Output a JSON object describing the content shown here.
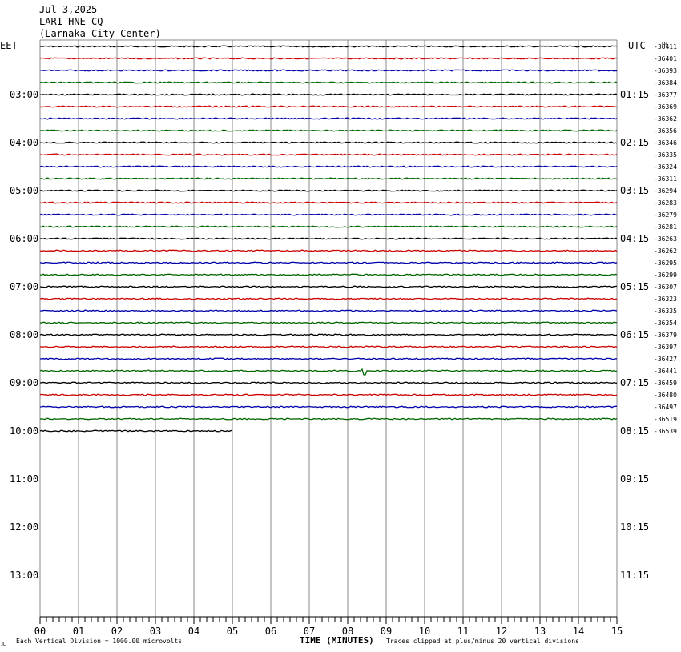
{
  "header": {
    "date": "Jul 3,2025",
    "station": "LAR1 HNE CQ --",
    "location": "(Larnaka City Center)"
  },
  "labels": {
    "left_zone": "EET",
    "right_zone": "UTC",
    "dc": "DC",
    "xlabel": "TIME (MINUTES)",
    "scale_note": "Each Vertical Division = 1000.00 microvolts",
    "clip_note": "Traces clipped at plus/minus 20 vertical divisions",
    "corner_mark": "JL"
  },
  "chart_data": {
    "type": "line",
    "title": "LAR1 HNE CQ --",
    "xlabel": "TIME (MINUTES)",
    "xlim": [
      0,
      15
    ],
    "x_ticks": [
      "00",
      "01",
      "02",
      "03",
      "04",
      "05",
      "06",
      "07",
      "08",
      "09",
      "10",
      "11",
      "12",
      "13",
      "14",
      "15"
    ],
    "left_time_labels": [
      "03:00",
      "04:00",
      "05:00",
      "06:00",
      "07:00",
      "08:00",
      "09:00",
      "10:00",
      "11:00",
      "12:00",
      "13:00"
    ],
    "right_time_labels": [
      "01:15",
      "02:15",
      "03:15",
      "04:15",
      "05:15",
      "06:15",
      "07:15",
      "08:15",
      "09:15",
      "10:15",
      "11:15"
    ],
    "rows_total": 33,
    "trace_colors": [
      "#000000",
      "#cc0000",
      "#0000aa",
      "#006600"
    ],
    "dc_offsets": [
      -36411,
      -36401,
      -36393,
      -36384,
      -36377,
      -36369,
      -36362,
      -36356,
      -36346,
      -36335,
      -36324,
      -36311,
      -36294,
      -36283,
      -36279,
      -36281,
      -36263,
      -36262,
      -36295,
      -36299,
      -36307,
      -36323,
      -36335,
      -36354,
      -36379,
      -36397,
      -36427,
      -36441,
      -36459,
      -36480,
      -36497,
      -36519,
      -36539
    ],
    "last_trace_minutes": 5,
    "events": [
      {
        "row": 16,
        "minute": 9.2,
        "amplitude": 0.8
      },
      {
        "row": 27,
        "minute": 8.4,
        "amplitude": 5
      }
    ]
  }
}
